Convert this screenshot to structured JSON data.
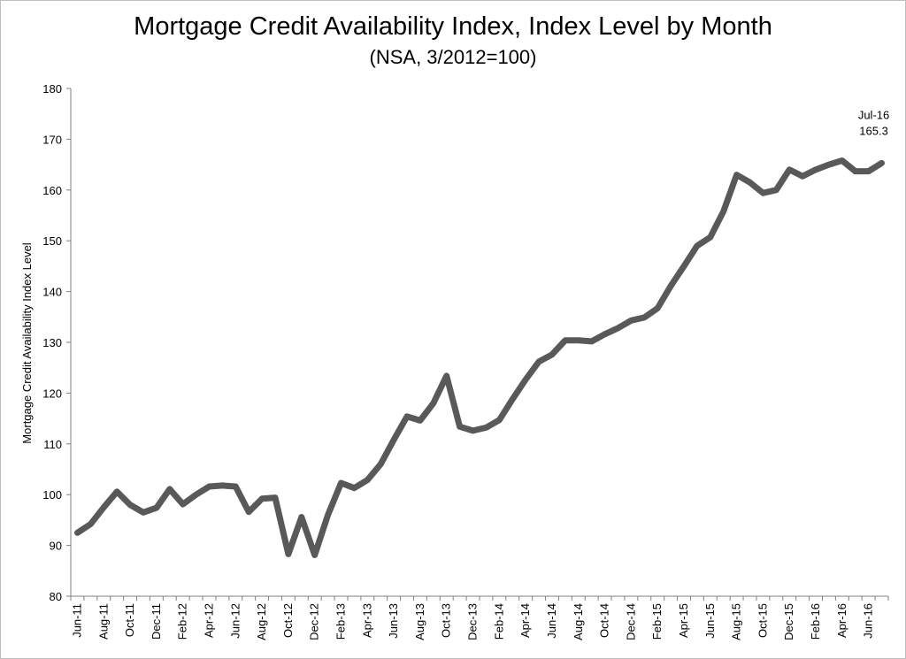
{
  "chart_data": {
    "type": "line",
    "title": "Mortgage Credit Availability Index, Index Level by Month",
    "subtitle": "(NSA, 3/2012=100)",
    "xlabel": "",
    "ylabel": "Mortgage Credit Availability Index Level",
    "ylim": [
      80,
      180
    ],
    "yticks": [
      80,
      90,
      100,
      110,
      120,
      130,
      140,
      150,
      160,
      170,
      180
    ],
    "grid": false,
    "legend": "none",
    "line_color": "#595959",
    "x_tick_labels": [
      "Jun-11",
      "Aug-11",
      "Oct-11",
      "Dec-11",
      "Feb-12",
      "Apr-12",
      "Jun-12",
      "Aug-12",
      "Oct-12",
      "Dec-12",
      "Feb-13",
      "Apr-13",
      "Jun-13",
      "Aug-13",
      "Oct-13",
      "Dec-13",
      "Feb-14",
      "Apr-14",
      "Jun-14",
      "Aug-14",
      "Oct-14",
      "Dec-14",
      "Feb-15",
      "Apr-15",
      "Jun-15",
      "Aug-15",
      "Oct-15",
      "Dec-15",
      "Feb-16",
      "Apr-16",
      "Jun-16"
    ],
    "x": [
      "Jun-11",
      "Jul-11",
      "Aug-11",
      "Sep-11",
      "Oct-11",
      "Nov-11",
      "Dec-11",
      "Jan-12",
      "Feb-12",
      "Mar-12",
      "Apr-12",
      "May-12",
      "Jun-12",
      "Jul-12",
      "Aug-12",
      "Sep-12",
      "Oct-12",
      "Nov-12",
      "Dec-12",
      "Jan-13",
      "Feb-13",
      "Mar-13",
      "Apr-13",
      "May-13",
      "Jun-13",
      "Jul-13",
      "Aug-13",
      "Sep-13",
      "Oct-13",
      "Nov-13",
      "Dec-13",
      "Jan-14",
      "Feb-14",
      "Mar-14",
      "Apr-14",
      "May-14",
      "Jun-14",
      "Jul-14",
      "Aug-14",
      "Sep-14",
      "Oct-14",
      "Nov-14",
      "Dec-14",
      "Jan-15",
      "Feb-15",
      "Mar-15",
      "Apr-15",
      "May-15",
      "Jun-15",
      "Jul-15",
      "Aug-15",
      "Sep-15",
      "Oct-15",
      "Nov-15",
      "Dec-15",
      "Jan-16",
      "Feb-16",
      "Mar-16",
      "Apr-16",
      "May-16",
      "Jun-16",
      "Jul-16"
    ],
    "series": [
      {
        "values": [
          92.5,
          94.2,
          97.5,
          100.6,
          98.0,
          96.5,
          97.4,
          101.1,
          98.1,
          100.0,
          101.6,
          101.8,
          101.6,
          96.6,
          99.2,
          99.4,
          88.3,
          95.6,
          88.1,
          96.0,
          102.3,
          101.3,
          102.9,
          106.0,
          110.8,
          115.4,
          114.6,
          118.0,
          123.4,
          113.4,
          112.6,
          113.2,
          114.7,
          118.8,
          122.7,
          126.2,
          127.6,
          130.4,
          130.4,
          130.2,
          131.6,
          132.8,
          134.3,
          134.9,
          136.7,
          141.1,
          145.0,
          149.0,
          150.7,
          155.8,
          163.0,
          161.5,
          159.4,
          160.0,
          164.0,
          162.7,
          164.0,
          165.0,
          165.8,
          163.7,
          163.7,
          165.3
        ]
      }
    ],
    "annotation": {
      "x_label": "Jul-16",
      "value_label": "165.3"
    }
  }
}
